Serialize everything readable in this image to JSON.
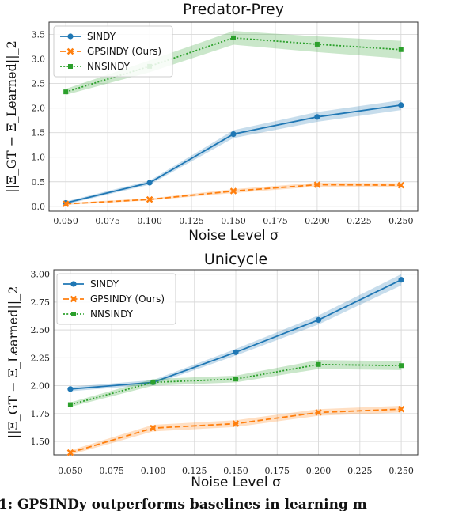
{
  "chart_data": [
    {
      "type": "line",
      "title": "Predator-Prey",
      "xlabel": "Noise Level σ",
      "ylabel": "||Ξ_GT − Ξ_Learned||_2",
      "x": [
        0.05,
        0.1,
        0.15,
        0.2,
        0.25
      ],
      "xticks": [
        "0.050",
        "0.075",
        "0.100",
        "0.125",
        "0.150",
        "0.175",
        "0.200",
        "0.225",
        "0.250"
      ],
      "yticks": [
        "0.0",
        "0.5",
        "1.0",
        "1.5",
        "2.0",
        "2.5",
        "3.0",
        "3.5"
      ],
      "xlim": [
        0.04,
        0.26
      ],
      "ylim": [
        -0.1,
        3.75
      ],
      "legend": "top-left",
      "grid": true,
      "series": [
        {
          "name": "SINDY",
          "values": [
            0.07,
            0.48,
            1.47,
            1.82,
            2.06
          ],
          "band": [
            0.03,
            0.04,
            0.08,
            0.1,
            0.1
          ],
          "color": "#1f77b4",
          "dash": "solid",
          "marker": "circle"
        },
        {
          "name": "GPSINDY (Ours)",
          "values": [
            0.05,
            0.14,
            0.31,
            0.44,
            0.43
          ],
          "band": [
            0.02,
            0.02,
            0.04,
            0.04,
            0.04
          ],
          "color": "#ff7f0e",
          "dash": "dashed",
          "marker": "x"
        },
        {
          "name": "NNSINDY",
          "values": [
            2.33,
            2.85,
            3.43,
            3.3,
            3.19
          ],
          "band": [
            0.06,
            0.12,
            0.14,
            0.16,
            0.18
          ],
          "color": "#2ca02c",
          "dash": "dotted",
          "marker": "square"
        }
      ]
    },
    {
      "type": "line",
      "title": "Unicycle",
      "xlabel": "Noise Level σ",
      "ylabel": "||Ξ_GT − Ξ_Learned||_2",
      "x": [
        0.05,
        0.1,
        0.15,
        0.2,
        0.25
      ],
      "xticks": [
        "0.050",
        "0.075",
        "0.100",
        "0.125",
        "0.150",
        "0.175",
        "0.200",
        "0.225",
        "0.250"
      ],
      "yticks": [
        "1.50",
        "1.75",
        "2.00",
        "2.25",
        "2.50",
        "2.75",
        "3.00"
      ],
      "xlim": [
        0.04,
        0.26
      ],
      "ylim": [
        1.38,
        3.04
      ],
      "legend": "top-left",
      "grid": true,
      "series": [
        {
          "name": "SINDY",
          "values": [
            1.97,
            2.03,
            2.3,
            2.59,
            2.95
          ],
          "band": [
            0.02,
            0.02,
            0.03,
            0.04,
            0.05
          ],
          "color": "#1f77b4",
          "dash": "solid",
          "marker": "circle"
        },
        {
          "name": "GPSINDY (Ours)",
          "values": [
            1.4,
            1.62,
            1.66,
            1.76,
            1.79
          ],
          "band": [
            0.02,
            0.03,
            0.03,
            0.03,
            0.03
          ],
          "color": "#ff7f0e",
          "dash": "dashed",
          "marker": "x"
        },
        {
          "name": "NNSINDY",
          "values": [
            1.83,
            2.03,
            2.06,
            2.19,
            2.18
          ],
          "band": [
            0.02,
            0.03,
            0.03,
            0.04,
            0.04
          ],
          "color": "#2ca02c",
          "dash": "dotted",
          "marker": "square"
        }
      ]
    }
  ],
  "caption": "1: GPSINDy outperforms baselines in learning m"
}
